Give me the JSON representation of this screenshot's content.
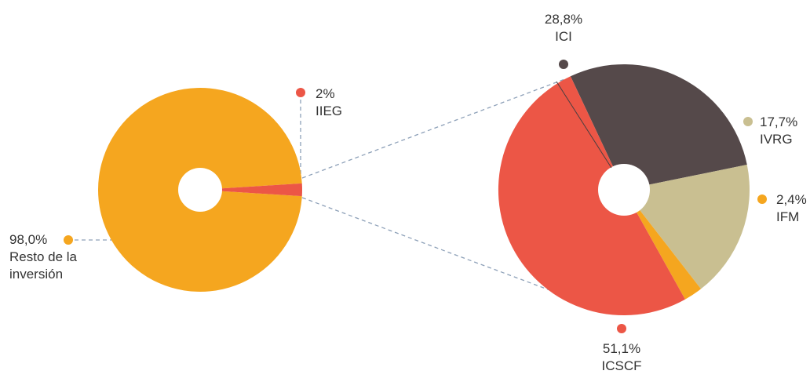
{
  "colors": {
    "orange": "#f5a61f",
    "red": "#ec5646",
    "dark": "#55494a",
    "beige": "#c9bf91",
    "connector": "#8da0b8"
  },
  "chart_data": [
    {
      "type": "pie",
      "title": "",
      "donut": true,
      "slices": [
        {
          "name": "Resto de la inversión",
          "value": 98.0,
          "pct_label": "98,0%",
          "name_lines": [
            "Resto de la",
            "inversión"
          ],
          "color": "#f5a61f"
        },
        {
          "name": "IIEG",
          "value": 2.0,
          "pct_label": "2%",
          "name_lines": [
            "IIEG"
          ],
          "color": "#ec5646"
        }
      ]
    },
    {
      "type": "pie",
      "title": "",
      "donut": true,
      "breakdown_of": "IIEG",
      "slices": [
        {
          "name": "ICI",
          "value": 28.8,
          "pct_label": "28,8%",
          "name_lines": [
            "ICI"
          ],
          "color": "#55494a"
        },
        {
          "name": "IVRG",
          "value": 17.7,
          "pct_label": "17,7%",
          "name_lines": [
            "IVRG"
          ],
          "color": "#c9bf91"
        },
        {
          "name": "IFM",
          "value": 2.4,
          "pct_label": "2,4%",
          "name_lines": [
            "IFM"
          ],
          "color": "#f5a61f"
        },
        {
          "name": "ICSCF",
          "value": 51.1,
          "pct_label": "51,1%",
          "name_lines": [
            "ICSCF"
          ],
          "color": "#ec5646"
        }
      ]
    }
  ]
}
